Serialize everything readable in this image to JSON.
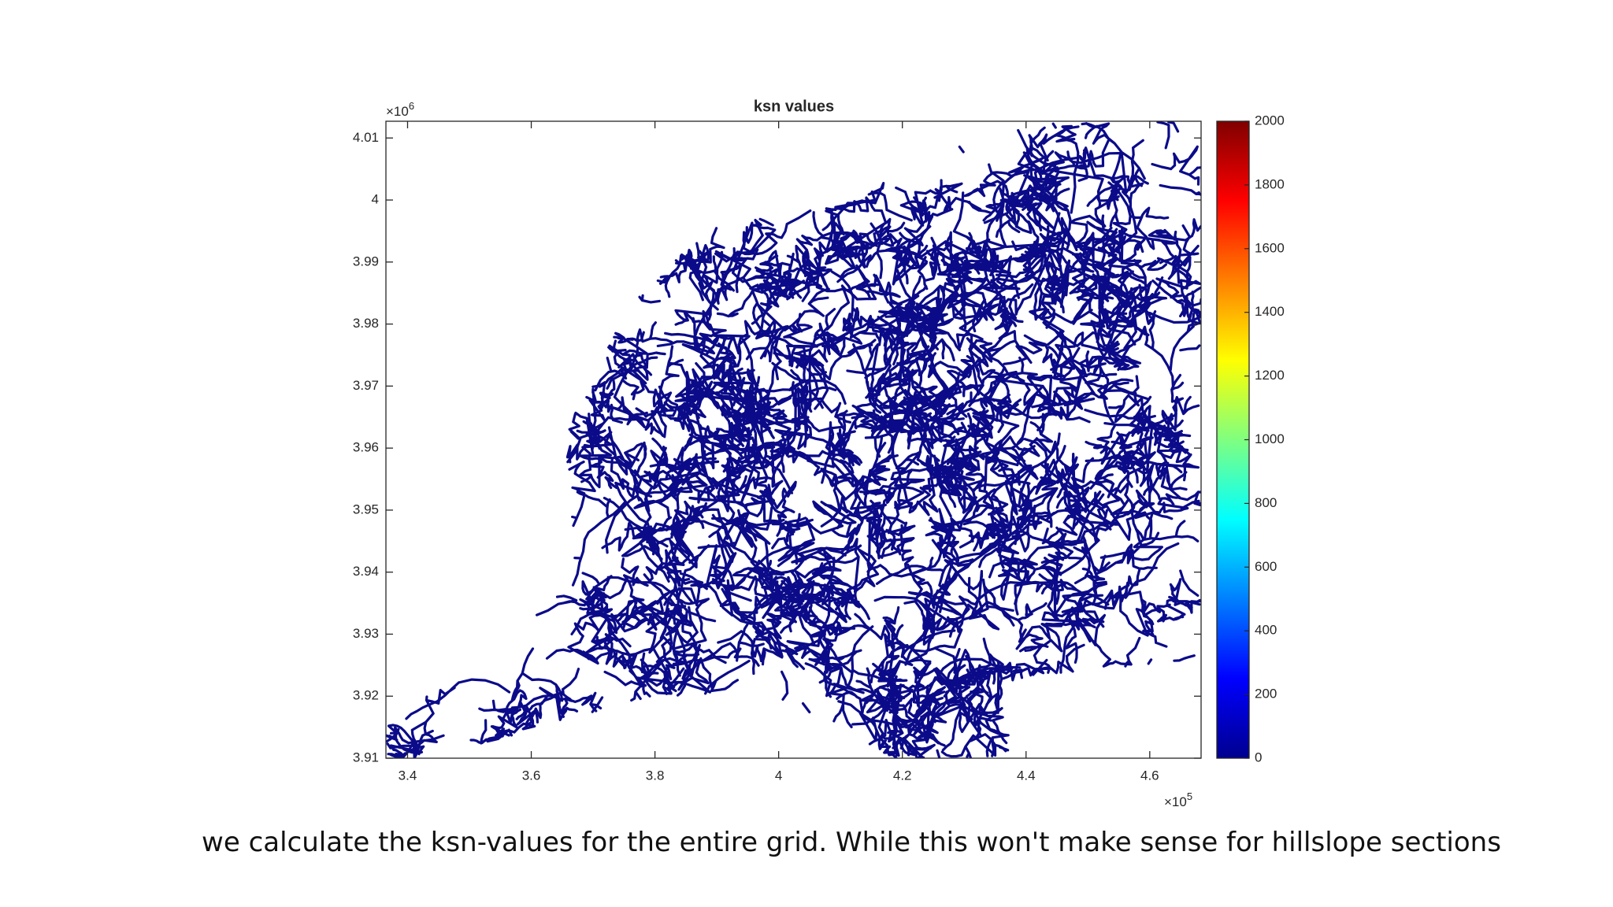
{
  "chart_data": {
    "type": "stream-map",
    "title": "ksn values",
    "xlim": [
      336500,
      468300
    ],
    "ylim": [
      3910000,
      4012700
    ],
    "xticks": [
      {
        "value": 340000,
        "label": "3.4"
      },
      {
        "value": 360000,
        "label": "3.6"
      },
      {
        "value": 380000,
        "label": "3.8"
      },
      {
        "value": 400000,
        "label": "4"
      },
      {
        "value": 420000,
        "label": "4.2"
      },
      {
        "value": 440000,
        "label": "4.4"
      },
      {
        "value": 460000,
        "label": "4.6"
      }
    ],
    "yticks": [
      {
        "value": 3910000,
        "label": "3.91"
      },
      {
        "value": 3920000,
        "label": "3.92"
      },
      {
        "value": 3930000,
        "label": "3.93"
      },
      {
        "value": 3940000,
        "label": "3.94"
      },
      {
        "value": 3950000,
        "label": "3.95"
      },
      {
        "value": 3960000,
        "label": "3.96"
      },
      {
        "value": 3970000,
        "label": "3.97"
      },
      {
        "value": 3980000,
        "label": "3.98"
      },
      {
        "value": 3990000,
        "label": "3.99"
      },
      {
        "value": 4000000,
        "label": "4"
      },
      {
        "value": 4010000,
        "label": "4.01"
      }
    ],
    "x_exponent": {
      "base": "×10",
      "power": "5"
    },
    "y_exponent": {
      "base": "×10",
      "power": "6"
    },
    "line_color": "#0b0b8a",
    "colormap": "jet",
    "clim": [
      0,
      2000
    ],
    "cticks": [
      0,
      200,
      400,
      600,
      800,
      1000,
      1200,
      1400,
      1600,
      1800,
      2000
    ]
  },
  "caption": "we calculate the ksn-values for the entire grid. While this won't make sense for hillslope sections"
}
